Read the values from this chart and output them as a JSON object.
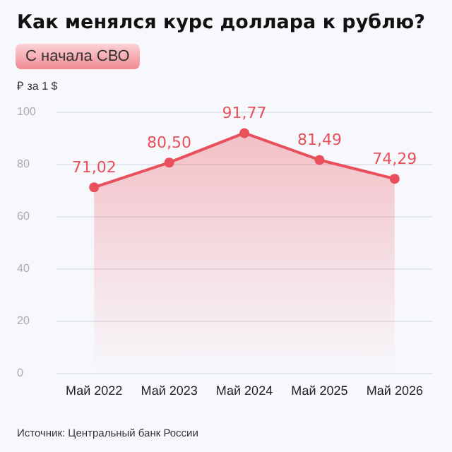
{
  "chart_data": {
    "type": "area",
    "title": "Как менялся курс доллара к рублю?",
    "subtitle": "С начала СВО",
    "ylabel": "₽ за 1 $",
    "annotations": [
      "Источник: Центральный банк России"
    ],
    "categories": [
      "Май 2022",
      "Май 2023",
      "Май 2024",
      "Май 2025",
      "Май 2026"
    ],
    "series": [
      {
        "color": "#e8505b",
        "values": [
          71.02,
          80.5,
          91.77,
          81.49,
          74.29
        ],
        "value_labels": [
          "71,02",
          "80,50",
          "91,77",
          "81,49",
          "74,29"
        ]
      }
    ],
    "ylim": [
      0,
      100
    ],
    "yticks": [
      0,
      20,
      40,
      60,
      80,
      100
    ],
    "grid": "y",
    "marker": "circle",
    "line_style": "solid"
  }
}
